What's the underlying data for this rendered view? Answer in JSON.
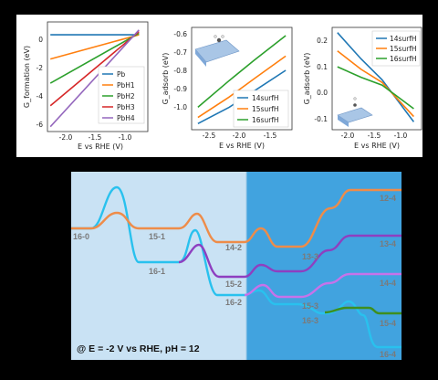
{
  "colors": {
    "blue": "#1f77b4",
    "orange": "#ff7f0e",
    "green": "#2ca02c",
    "red": "#d62728",
    "purple": "#9467bd",
    "left_bg": "#c9e2f4",
    "right_bg": "#41a3df",
    "black_bg": "#000000",
    "cyan": "#29c1ee",
    "orange_path": "#ee8c49",
    "purple_path": "#8e3fc0",
    "lilac_path": "#c772ea",
    "green_path": "#3e8f1f"
  },
  "chart_data": [
    {
      "type": "line",
      "xlabel": "E vs RHE (V)",
      "ylabel": "G_formation (eV)",
      "xlim": [
        -2.35,
        -0.65
      ],
      "ylim": [
        -6,
        0.8
      ],
      "xticks": [
        "-2.0",
        "-1.5",
        "-1.0"
      ],
      "yticks": [
        "0",
        "-2",
        "-4",
        "-6"
      ],
      "legend_position": "center-right",
      "series": [
        {
          "name": "Pb",
          "color": "#1f77b4",
          "points": [
            [
              -2.3,
              0
            ],
            [
              -0.8,
              0
            ]
          ]
        },
        {
          "name": "PbH1",
          "color": "#ff7f0e",
          "points": [
            [
              -2.3,
              -1.5
            ],
            [
              -0.8,
              0
            ]
          ]
        },
        {
          "name": "PbH2",
          "color": "#2ca02c",
          "points": [
            [
              -2.3,
              -3.0
            ],
            [
              -0.8,
              0.1
            ]
          ]
        },
        {
          "name": "PbH3",
          "color": "#d62728",
          "points": [
            [
              -2.3,
              -4.4
            ],
            [
              -0.8,
              0.2
            ]
          ]
        },
        {
          "name": "PbH4",
          "color": "#9467bd",
          "points": [
            [
              -2.3,
              -5.7
            ],
            [
              -0.8,
              0.3
            ]
          ]
        }
      ]
    },
    {
      "type": "line",
      "xlabel": "E vs RHE (V)",
      "ylabel": "G_adsorb (eV)",
      "xlim": [
        -2.8,
        -1.2
      ],
      "ylim": [
        -1.08,
        -0.58
      ],
      "xticks": [
        "-2.5",
        "-2.0",
        "-1.5"
      ],
      "yticks": [
        "-0.6",
        "-0.7",
        "-0.8",
        "-0.9",
        "-1.0"
      ],
      "legend_position": "bottom-right",
      "series": [
        {
          "name": "14surfH",
          "color": "#1f77b4",
          "points": [
            [
              -2.7,
              -1.05
            ],
            [
              -2.2,
              -0.97
            ],
            [
              -1.8,
              -0.89
            ],
            [
              -1.3,
              -0.79
            ]
          ]
        },
        {
          "name": "15surfH",
          "color": "#ff7f0e",
          "points": [
            [
              -2.7,
              -1.02
            ],
            [
              -2.2,
              -0.92
            ],
            [
              -1.8,
              -0.83
            ],
            [
              -1.3,
              -0.72
            ]
          ]
        },
        {
          "name": "16surfH",
          "color": "#2ca02c",
          "points": [
            [
              -2.7,
              -0.97
            ],
            [
              -2.2,
              -0.84
            ],
            [
              -1.8,
              -0.74
            ],
            [
              -1.3,
              -0.62
            ]
          ]
        }
      ]
    },
    {
      "type": "line",
      "xlabel": "E vs RHE (V)",
      "ylabel": "G_adsorb (eV)",
      "xlim": [
        -2.35,
        -0.65
      ],
      "ylim": [
        -0.14,
        0.25
      ],
      "xticks": [
        "-2.0",
        "-1.5",
        "-1.0"
      ],
      "yticks": [
        "0.2",
        "0.1",
        "0.0",
        "-0.1"
      ],
      "legend_position": "top-right",
      "series": [
        {
          "name": "14surfH",
          "color": "#1f77b4",
          "points": [
            [
              -2.25,
              0.23
            ],
            [
              -1.8,
              0.13
            ],
            [
              -1.4,
              0.05
            ],
            [
              -0.8,
              -0.11
            ]
          ]
        },
        {
          "name": "15surfH",
          "color": "#ff7f0e",
          "points": [
            [
              -2.25,
              0.16
            ],
            [
              -1.8,
              0.09
            ],
            [
              -1.4,
              0.04
            ],
            [
              -0.8,
              -0.09
            ]
          ]
        },
        {
          "name": "16surfH",
          "color": "#2ca02c",
          "points": [
            [
              -2.25,
              0.1
            ],
            [
              -1.8,
              0.06
            ],
            [
              -1.4,
              0.03
            ],
            [
              -0.8,
              -0.06
            ]
          ]
        }
      ]
    }
  ],
  "energy_diagram": {
    "condition": "@ E = -2 V vs RHE, pH = 12",
    "labels": [
      {
        "text": "16-0",
        "color": "#7a7a7a"
      },
      {
        "text": "15-1",
        "color": "#7a7a7a"
      },
      {
        "text": "16-1",
        "color": "#7a7a7a"
      },
      {
        "text": "14-2",
        "color": "#7a7a7a"
      },
      {
        "text": "15-2",
        "color": "#7a7a7a"
      },
      {
        "text": "16-2",
        "color": "#7a7a7a"
      },
      {
        "text": "13-3",
        "color": "#1f5f88"
      },
      {
        "text": "15-3",
        "color": "#1f5f88"
      },
      {
        "text": "16-3",
        "color": "#1f5f88"
      },
      {
        "text": "12-4",
        "color": "#1f5f88"
      },
      {
        "text": "13-4",
        "color": "#1f5f88"
      },
      {
        "text": "14-4",
        "color": "#1f5f88"
      },
      {
        "text": "15-4",
        "color": "#1f5f88"
      },
      {
        "text": "16-4",
        "color": "#1f5f88"
      }
    ]
  }
}
